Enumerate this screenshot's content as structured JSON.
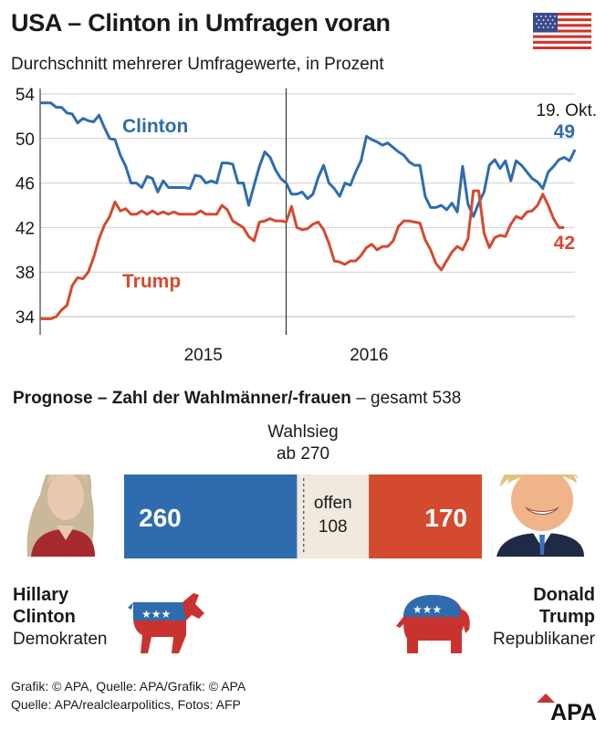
{
  "title": "USA – Clinton in Umfragen voran",
  "subtitle": "Durchschnitt mehrerer Umfragewerte, in Prozent",
  "chart_data": {
    "type": "line",
    "ylim": [
      34,
      54
    ],
    "yticks": [
      34,
      38,
      42,
      46,
      50,
      54
    ],
    "xlim": [
      0,
      100
    ],
    "xtick_labels": [
      {
        "label": "2015",
        "x": 30.5
      },
      {
        "label": "2016",
        "x": 61.5
      }
    ],
    "year_divider_x": 46,
    "grid": "horizontal",
    "end_label": "19. Okt.",
    "series": [
      {
        "name": "Clinton",
        "color": "#2e6cad",
        "end_value_label": "49",
        "points": [
          [
            0,
            53.2
          ],
          [
            2,
            53.2
          ],
          [
            3,
            52.8
          ],
          [
            4,
            52.8
          ],
          [
            5,
            52.3
          ],
          [
            6,
            52.2
          ],
          [
            7,
            51.4
          ],
          [
            8,
            51.8
          ],
          [
            9,
            51.6
          ],
          [
            10,
            51.5
          ],
          [
            11,
            52.1
          ],
          [
            12,
            51.0
          ],
          [
            13,
            50.0
          ],
          [
            14,
            49.9
          ],
          [
            15,
            48.5
          ],
          [
            16,
            47.5
          ],
          [
            17,
            46.0
          ],
          [
            18,
            46.0
          ],
          [
            19,
            45.6
          ],
          [
            20,
            46.6
          ],
          [
            21,
            46.4
          ],
          [
            22,
            45.2
          ],
          [
            23,
            46.2
          ],
          [
            24,
            45.6
          ],
          [
            25,
            45.6
          ],
          [
            26,
            45.6
          ],
          [
            27,
            45.6
          ],
          [
            28,
            45.5
          ],
          [
            29,
            46.7
          ],
          [
            30,
            46.6
          ],
          [
            31,
            46.0
          ],
          [
            32,
            46.2
          ],
          [
            33,
            46.0
          ],
          [
            34,
            47.8
          ],
          [
            35,
            47.8
          ],
          [
            36,
            47.7
          ],
          [
            37,
            46.0
          ],
          [
            38,
            46.0
          ],
          [
            39,
            44.0
          ],
          [
            40,
            45.8
          ],
          [
            41,
            47.5
          ],
          [
            42,
            48.8
          ],
          [
            43,
            48.3
          ],
          [
            44,
            47.2
          ],
          [
            45,
            46.4
          ],
          [
            46,
            46.0
          ],
          [
            47,
            45.0
          ],
          [
            48,
            45.0
          ],
          [
            49,
            45.2
          ],
          [
            50,
            44.6
          ],
          [
            51,
            45.0
          ],
          [
            52,
            46.5
          ],
          [
            53,
            47.6
          ],
          [
            54,
            46.0
          ],
          [
            55,
            45.5
          ],
          [
            56,
            44.8
          ],
          [
            57,
            46.0
          ],
          [
            58,
            45.8
          ],
          [
            59,
            47.0
          ],
          [
            60,
            48.0
          ],
          [
            61,
            50.2
          ],
          [
            62,
            49.9
          ],
          [
            63,
            49.7
          ],
          [
            64,
            49.4
          ],
          [
            65,
            49.6
          ],
          [
            66,
            49.2
          ],
          [
            67,
            48.8
          ],
          [
            68,
            48.5
          ],
          [
            69,
            47.9
          ],
          [
            70,
            47.6
          ],
          [
            71,
            47.6
          ],
          [
            72,
            44.8
          ],
          [
            73,
            43.8
          ],
          [
            74,
            43.8
          ],
          [
            75,
            44.0
          ],
          [
            76,
            43.6
          ],
          [
            77,
            44.2
          ],
          [
            78,
            43.4
          ],
          [
            79,
            47.5
          ],
          [
            80,
            44.1
          ],
          [
            81,
            43.0
          ],
          [
            82,
            44.2
          ],
          [
            83,
            45.2
          ],
          [
            84,
            47.6
          ],
          [
            85,
            48.1
          ],
          [
            86,
            47.3
          ],
          [
            87,
            48.0
          ],
          [
            88,
            46.2
          ],
          [
            89,
            48.0
          ],
          [
            90,
            47.6
          ],
          [
            91,
            47.0
          ],
          [
            92,
            46.4
          ],
          [
            93,
            46.1
          ],
          [
            94,
            45.5
          ],
          [
            95,
            47.0
          ],
          [
            96,
            47.5
          ],
          [
            97,
            48.1
          ],
          [
            98,
            48.3
          ],
          [
            99,
            48.0
          ],
          [
            100,
            49.0
          ]
        ]
      },
      {
        "name": "Trump",
        "color": "#d44a2e",
        "end_value_label": "42",
        "points": [
          [
            0,
            33.8
          ],
          [
            2,
            33.8
          ],
          [
            3,
            34.0
          ],
          [
            4,
            34.6
          ],
          [
            5,
            35.0
          ],
          [
            6,
            36.8
          ],
          [
            7,
            37.5
          ],
          [
            8,
            37.4
          ],
          [
            9,
            38.0
          ],
          [
            10,
            39.3
          ],
          [
            11,
            41.0
          ],
          [
            12,
            42.2
          ],
          [
            13,
            43.0
          ],
          [
            14,
            44.3
          ],
          [
            15,
            43.5
          ],
          [
            16,
            43.7
          ],
          [
            17,
            43.2
          ],
          [
            18,
            43.2
          ],
          [
            19,
            43.5
          ],
          [
            20,
            43.2
          ],
          [
            21,
            43.5
          ],
          [
            22,
            43.2
          ],
          [
            23,
            43.4
          ],
          [
            24,
            43.2
          ],
          [
            25,
            43.4
          ],
          [
            26,
            43.2
          ],
          [
            27,
            43.2
          ],
          [
            28,
            43.2
          ],
          [
            29,
            43.2
          ],
          [
            30,
            43.5
          ],
          [
            31,
            43.2
          ],
          [
            32,
            43.2
          ],
          [
            33,
            43.2
          ],
          [
            34,
            44.0
          ],
          [
            35,
            43.6
          ],
          [
            36,
            42.6
          ],
          [
            37,
            42.3
          ],
          [
            38,
            42.0
          ],
          [
            39,
            41.2
          ],
          [
            40,
            40.8
          ],
          [
            41,
            42.5
          ],
          [
            42,
            42.6
          ],
          [
            43,
            42.8
          ],
          [
            44,
            42.6
          ],
          [
            45,
            42.6
          ],
          [
            46,
            42.5
          ],
          [
            47,
            43.9
          ],
          [
            48,
            42.0
          ],
          [
            49,
            41.8
          ],
          [
            50,
            41.9
          ],
          [
            51,
            42.3
          ],
          [
            52,
            42.5
          ],
          [
            53,
            41.8
          ],
          [
            54,
            40.6
          ],
          [
            55,
            39.0
          ],
          [
            56,
            38.9
          ],
          [
            57,
            38.7
          ],
          [
            58,
            39.0
          ],
          [
            59,
            39.0
          ],
          [
            60,
            39.5
          ],
          [
            61,
            40.2
          ],
          [
            62,
            40.5
          ],
          [
            63,
            40.0
          ],
          [
            64,
            40.3
          ],
          [
            65,
            40.3
          ],
          [
            66,
            40.8
          ],
          [
            67,
            42.1
          ],
          [
            68,
            42.6
          ],
          [
            69,
            42.6
          ],
          [
            70,
            42.5
          ],
          [
            71,
            42.4
          ],
          [
            72,
            40.9
          ],
          [
            73,
            40.0
          ],
          [
            74,
            38.8
          ],
          [
            75,
            38.2
          ],
          [
            76,
            39.0
          ],
          [
            77,
            39.8
          ],
          [
            78,
            40.3
          ],
          [
            79,
            40.0
          ],
          [
            80,
            41.0
          ],
          [
            81,
            45.3
          ],
          [
            82,
            45.3
          ],
          [
            83,
            41.5
          ],
          [
            84,
            40.2
          ],
          [
            85,
            41.1
          ],
          [
            86,
            41.3
          ],
          [
            87,
            41.2
          ],
          [
            88,
            42.3
          ],
          [
            89,
            43.0
          ],
          [
            90,
            42.8
          ],
          [
            91,
            43.4
          ],
          [
            92,
            43.5
          ],
          [
            93,
            44.0
          ],
          [
            94,
            45.0
          ],
          [
            95,
            44.0
          ],
          [
            96,
            42.8
          ],
          [
            97,
            42.0
          ],
          [
            98,
            42.0
          ]
        ]
      }
    ]
  },
  "forecast": {
    "heading_bold": "Prognose – Zahl der Wahlmänner/-frauen",
    "heading_rest": " – gesamt 538",
    "total": 538,
    "threshold_line1": "Wahlsieg",
    "threshold_line2": "ab 270",
    "threshold_value": 270,
    "segments": [
      {
        "key": "clinton",
        "label": "260",
        "value": 260,
        "color": "#2e6cad"
      },
      {
        "key": "open",
        "label_line1": "offen",
        "label_line2": "108",
        "value": 108,
        "color": "#efe9de"
      },
      {
        "key": "trump",
        "label": "170",
        "value": 170,
        "color": "#d44a2e"
      }
    ]
  },
  "candidates": {
    "clinton": {
      "first": "Hillary",
      "last": "Clinton",
      "party": "Demokraten",
      "party_color": "#2e6cad"
    },
    "trump": {
      "first": "Donald",
      "last": "Trump",
      "party": "Republikaner",
      "party_color": "#d44a2e"
    }
  },
  "footer": {
    "line1": "Grafik: © APA, Quelle: APA/Grafik: © APA",
    "line2": "Quelle: APA/realclearpolitics, Fotos: AFP"
  },
  "logo_text": "APA",
  "icons": {
    "flag": "usa-flag-icon",
    "donkey": "democratic-donkey-icon",
    "elephant": "republican-elephant-icon",
    "clinton_photo": "portrait-icon",
    "trump_photo": "portrait-icon"
  }
}
